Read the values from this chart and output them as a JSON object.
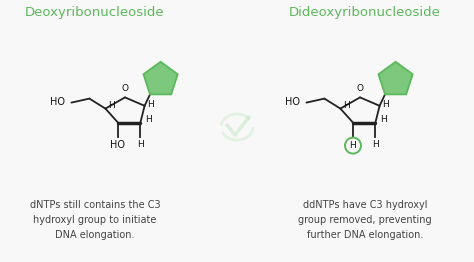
{
  "bg_color": "#f8f8f8",
  "title_left": "Deoxyribonucleoside",
  "title_right": "Dideoxyribonucleoside",
  "title_color": "#5cb85c",
  "title_fontsize": 9.5,
  "caption_left": "dNTPs still contains the C3\nhydroxyl group to initiate\nDNA elongation.",
  "caption_right": "ddNTPs have C3 hydroxyl\ngroup removed, preventing\nfurther DNA elongation.",
  "caption_color": "#444444",
  "caption_fontsize": 7.0,
  "pentagon_fill": "#7cc87c",
  "pentagon_edge": "#5cb85c",
  "ring_color": "#222222",
  "bond_color": "#222222",
  "circle_color": "#5cb85c",
  "label_color": "#111111",
  "label_fontsize": 6.5,
  "o_fontsize": 6.5,
  "watermark_color": "#c8e6c9",
  "watermark_alpha": 0.6
}
